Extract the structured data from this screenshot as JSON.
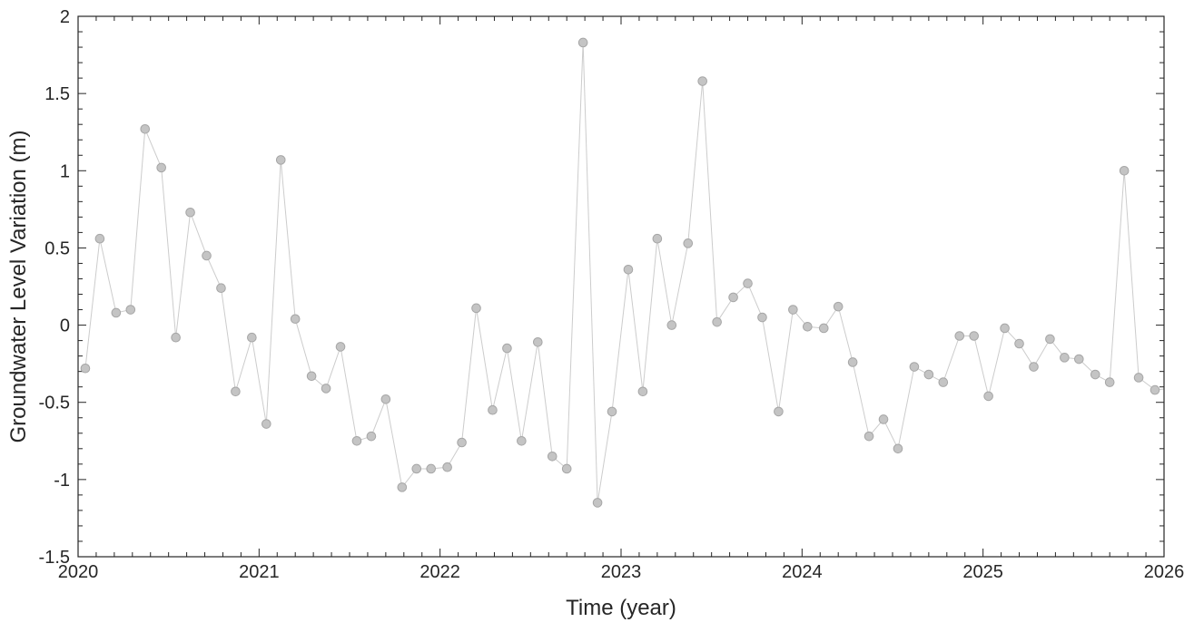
{
  "chart_data": {
    "type": "line",
    "title": "",
    "xlabel": "Time (year)",
    "ylabel": "Groundwater Level Variation (m)",
    "xlim": [
      2020,
      2026
    ],
    "ylim": [
      -1.5,
      2
    ],
    "x_ticks": [
      2020,
      2021,
      2022,
      2023,
      2024,
      2025,
      2026
    ],
    "x_tick_labels": [
      "2020",
      "2021",
      "2022",
      "2023",
      "2024",
      "2025",
      "2026"
    ],
    "y_ticks": [
      -1.5,
      -1,
      -0.5,
      0,
      0.5,
      1,
      1.5,
      2
    ],
    "y_tick_labels": [
      "-1.5",
      "-1",
      "-0.5",
      "0",
      "0.5",
      "1",
      "1.5",
      "2"
    ],
    "grid": false,
    "legend": false,
    "colors": {
      "axis": "#262626",
      "line": "#cccccc",
      "marker_fill": "#c4c4c4",
      "marker_edge": "#a6a6a6"
    },
    "series": [
      {
        "x": [
          2020.04,
          2020.12,
          2020.21,
          2020.29,
          2020.37,
          2020.46,
          2020.54,
          2020.62,
          2020.71,
          2020.79,
          2020.87,
          2020.96,
          2021.04,
          2021.12,
          2021.2,
          2021.29,
          2021.37,
          2021.45,
          2021.54,
          2021.62,
          2021.7,
          2021.79,
          2021.87,
          2021.95,
          2022.04,
          2022.12,
          2022.2,
          2022.29,
          2022.37,
          2022.45,
          2022.54,
          2022.62,
          2022.7,
          2022.79,
          2022.87,
          2022.95,
          2023.04,
          2023.12,
          2023.2,
          2023.28,
          2023.37,
          2023.45,
          2023.53,
          2023.62,
          2023.7,
          2023.78,
          2023.87,
          2023.95,
          2024.03,
          2024.12,
          2024.2,
          2024.28,
          2024.37,
          2024.45,
          2024.53,
          2024.62,
          2024.7,
          2024.78,
          2024.87,
          2024.95,
          2025.03,
          2025.12,
          2025.2,
          2025.28,
          2025.37,
          2025.45,
          2025.53,
          2025.62,
          2025.7,
          2025.78,
          2025.86,
          2025.95,
          2026.03
        ],
        "values": [
          -0.28,
          0.56,
          0.08,
          0.1,
          1.27,
          1.02,
          -0.08,
          0.73,
          0.45,
          0.24,
          -0.43,
          -0.08,
          -0.64,
          1.07,
          0.04,
          -0.33,
          -0.41,
          -0.14,
          -0.75,
          -0.72,
          -0.48,
          -1.05,
          -0.93,
          -0.93,
          -0.92,
          -0.76,
          0.11,
          -0.55,
          -0.15,
          -0.75,
          -0.11,
          -0.85,
          -0.93,
          1.83,
          -1.15,
          -0.56,
          0.36,
          -0.43,
          0.56,
          0.0,
          0.53,
          1.58,
          0.02,
          0.18,
          0.27,
          0.05,
          -0.56,
          0.1,
          -0.01,
          -0.02,
          0.12,
          -0.24,
          -0.72,
          -0.61,
          -0.8,
          -0.27,
          -0.32,
          -0.37,
          -0.07,
          -0.07,
          -0.46,
          -0.02,
          -0.12,
          -0.27,
          -0.09,
          -0.21,
          -0.22,
          -0.32,
          -0.37,
          1.0,
          -0.34,
          -0.42,
          -0.41
        ]
      }
    ]
  }
}
